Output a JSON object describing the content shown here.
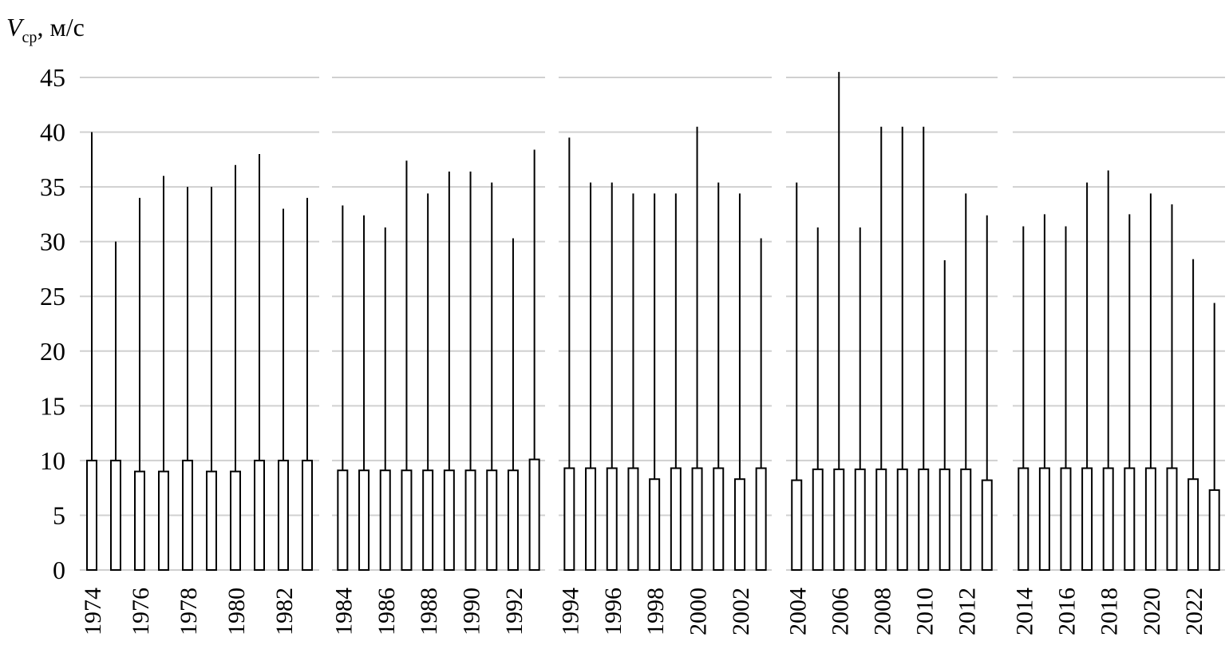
{
  "chart_data": [
    {
      "type": "bar",
      "y_label": {
        "symbol": "V",
        "subscript": "ср",
        "unit": ", м/с"
      },
      "show_tick_labels": true,
      "categories": [
        1974,
        null,
        1976,
        null,
        1978,
        null,
        1980,
        null,
        1982,
        null
      ],
      "values": [
        10,
        10,
        9,
        9,
        10,
        9,
        9,
        10,
        10,
        10
      ],
      "max": [
        40,
        30,
        34,
        36,
        35,
        35,
        37,
        38,
        33,
        34
      ],
      "ylim": [
        0,
        45
      ],
      "yticks": [
        0,
        5,
        10,
        15,
        20,
        25,
        30,
        35,
        40,
        45
      ],
      "grid": true
    },
    {
      "type": "bar",
      "show_tick_labels": false,
      "categories": [
        1984,
        null,
        1986,
        null,
        1988,
        null,
        1990,
        null,
        1992,
        null
      ],
      "values": [
        9.1,
        9.1,
        9.1,
        9.1,
        9.1,
        9.1,
        9.1,
        9.1,
        9.1,
        10.1
      ],
      "max": [
        33.3,
        32.4,
        31.3,
        37.4,
        34.4,
        36.4,
        36.4,
        35.4,
        30.3,
        38.4
      ],
      "ylim": [
        0,
        45
      ],
      "yticks": [
        0,
        5,
        10,
        15,
        20,
        25,
        30,
        35,
        40,
        45
      ],
      "grid": true
    },
    {
      "type": "bar",
      "show_tick_labels": false,
      "categories": [
        1994,
        null,
        1996,
        null,
        1998,
        null,
        2000,
        null,
        2002,
        null
      ],
      "values": [
        9.3,
        9.3,
        9.3,
        9.3,
        8.3,
        9.3,
        9.3,
        9.3,
        8.3,
        9.3
      ],
      "max": [
        39.5,
        35.4,
        35.4,
        34.4,
        34.4,
        34.4,
        40.5,
        35.4,
        34.4,
        30.3
      ],
      "ylim": [
        0,
        45
      ],
      "yticks": [
        0,
        5,
        10,
        15,
        20,
        25,
        30,
        35,
        40,
        45
      ],
      "grid": true
    },
    {
      "type": "bar",
      "show_tick_labels": false,
      "categories": [
        2004,
        null,
        2006,
        null,
        2008,
        null,
        2010,
        null,
        2012,
        null
      ],
      "values": [
        8.2,
        9.2,
        9.2,
        9.2,
        9.2,
        9.2,
        9.2,
        9.2,
        9.2,
        8.2
      ],
      "max": [
        35.4,
        31.3,
        45.5,
        31.3,
        40.5,
        40.5,
        40.5,
        28.3,
        34.4,
        32.4
      ],
      "ylim": [
        0,
        45
      ],
      "yticks": [
        0,
        5,
        10,
        15,
        20,
        25,
        30,
        35,
        40,
        45
      ],
      "grid": true
    },
    {
      "type": "bar",
      "show_tick_labels": false,
      "categories": [
        2014,
        null,
        2016,
        null,
        2018,
        null,
        2020,
        null,
        2022,
        null
      ],
      "values": [
        9.3,
        9.3,
        9.3,
        9.3,
        9.3,
        9.3,
        9.3,
        9.3,
        8.3,
        7.3
      ],
      "max": [
        31.4,
        32.5,
        31.4,
        35.4,
        36.5,
        32.5,
        34.4,
        33.4,
        28.4,
        24.4
      ],
      "ylim": [
        0,
        45
      ],
      "yticks": [
        0,
        5,
        10,
        15,
        20,
        25,
        30,
        35,
        40,
        45
      ],
      "grid": true
    }
  ]
}
